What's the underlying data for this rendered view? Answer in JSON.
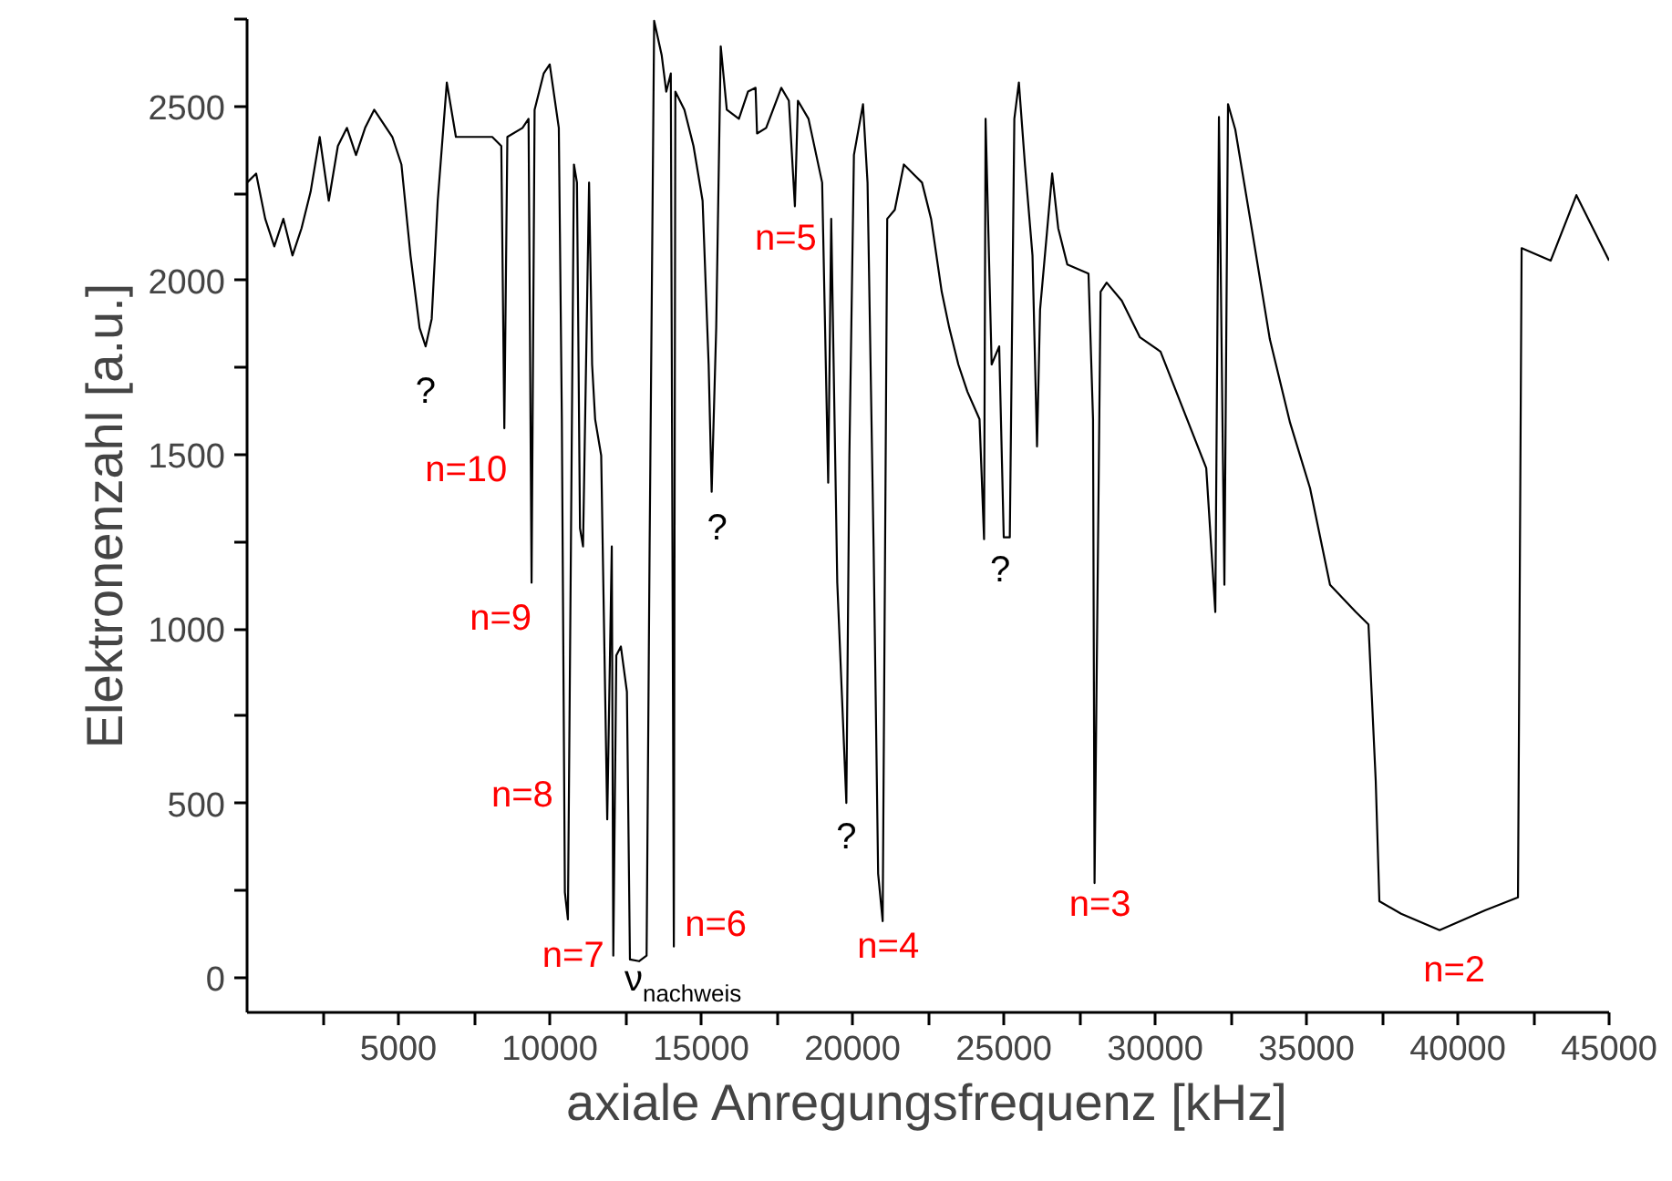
{
  "chart_data": {
    "type": "line",
    "xlabel": "axiale Anregungsfrequenz [kHz]",
    "ylabel": "Elektronenzahl [a.u.]",
    "color": "#000000",
    "line_style": "solid",
    "grid": false,
    "xlim": [
      0,
      45000
    ],
    "ylim": [
      -100,
      2750
    ],
    "xticks": [
      {
        "value": 2500,
        "label": null
      },
      5000,
      {
        "value": 7500,
        "label": null
      },
      10000,
      {
        "value": 12500,
        "label": null
      },
      15000,
      {
        "value": 17500,
        "label": null
      },
      20000,
      {
        "value": 22500,
        "label": null
      },
      25000,
      {
        "value": 27500,
        "label": null
      },
      30000,
      {
        "value": 32500,
        "label": null
      },
      35000,
      {
        "value": 37500,
        "label": null
      },
      40000,
      {
        "value": 42500,
        "label": null
      },
      45000
    ],
    "yticks": [
      0,
      {
        "value": 250,
        "label": null
      },
      500,
      {
        "value": 750,
        "label": null
      },
      1000,
      {
        "value": 1250,
        "label": null
      },
      1500,
      {
        "value": 1750,
        "label": null
      },
      2000,
      {
        "value": 2250,
        "label": null
      },
      2500,
      {
        "value": 2750,
        "label": null
      }
    ],
    "x": [
      0,
      300,
      600,
      900,
      1200,
      1500,
      1800,
      2100,
      2400,
      2700,
      3000,
      3300,
      3600,
      3900,
      4200,
      4800,
      5100,
      5400,
      5700,
      5900,
      6100,
      6300,
      6600,
      6900,
      7500,
      8100,
      8400,
      8500,
      8600,
      9100,
      9300,
      9400,
      9500,
      9800,
      10000,
      10300,
      10400,
      10500,
      10600,
      10700,
      10800,
      10900,
      11000,
      11100,
      11300,
      11400,
      11500,
      11700,
      11900,
      12050,
      12100,
      12200,
      12350,
      12550,
      12650,
      12950,
      13200,
      13300,
      13450,
      13700,
      13850,
      14000,
      14100,
      14150,
      14450,
      14750,
      15050,
      15250,
      15350,
      15500,
      15650,
      15850,
      16250,
      16550,
      16800,
      16850,
      17150,
      17650,
      17900,
      18100,
      18200,
      18550,
      19000,
      19200,
      19300,
      19500,
      19800,
      19900,
      20050,
      20350,
      20500,
      20700,
      20850,
      21000,
      21150,
      21400,
      21700,
      22000,
      22300,
      22600,
      22950,
      23200,
      23500,
      23800,
      24200,
      24350,
      24400,
      24600,
      24850,
      25000,
      25200,
      25350,
      25500,
      25700,
      25950,
      26100,
      26200,
      26600,
      26800,
      27100,
      27800,
      27950,
      28000,
      28200,
      28400,
      28900,
      29500,
      30180,
      31690,
      31990,
      32110,
      32290,
      32410,
      32650,
      33190,
      33790,
      34460,
      35120,
      35780,
      36630,
      37050,
      37290,
      37410,
      38130,
      39400,
      40900,
      41990,
      42110,
      43070,
      43920,
      45000
    ],
    "values": [
      2281,
      2307,
      2177,
      2098,
      2177,
      2072,
      2150,
      2255,
      2412,
      2229,
      2386,
      2438,
      2360,
      2438,
      2490,
      2412,
      2333,
      2072,
      1864,
      1811,
      1890,
      2229,
      2568,
      2412,
      2412,
      2412,
      2386,
      1576,
      2412,
      2438,
      2464,
      1133,
      2490,
      2594,
      2620,
      2438,
      1602,
      245,
      167,
      1237,
      2333,
      2281,
      1289,
      1237,
      2281,
      1759,
      1602,
      1498,
      454,
      1237,
      63,
      924,
      950,
      820,
      52,
      47,
      63,
      1237,
      2745,
      2646,
      2542,
      2594,
      89,
      2542,
      2490,
      2386,
      2229,
      1759,
      1394,
      1864,
      2672,
      2490,
      2464,
      2542,
      2553,
      2422,
      2438,
      2553,
      2516,
      2213,
      2516,
      2464,
      2281,
      1420,
      2177,
      1133,
      501,
      1498,
      2360,
      2506,
      2281,
      1237,
      298,
      162,
      2177,
      2203,
      2333,
      2307,
      2281,
      2177,
      1968,
      1864,
      1759,
      1681,
      1602,
      1258,
      2464,
      1759,
      1811,
      1263,
      1263,
      2464,
      2568,
      2333,
      2072,
      1524,
      1916,
      2307,
      2150,
      2046,
      2020,
      1602,
      271,
      1968,
      1994,
      1942,
      1837,
      1796,
      1462,
      1049,
      2469,
      1127,
      2506,
      2433,
      2151,
      1832,
      1592,
      1404,
      1127,
      1049,
      1013,
      564,
      219,
      183,
      136,
      193,
      230,
      2093,
      2057,
      2245,
      2057
    ],
    "annotations": [
      {
        "text": "?",
        "x": 5900,
        "y": 1811
      },
      {
        "text": "n=10",
        "x": 8500,
        "y": 1576
      },
      {
        "text": "n=9",
        "x": 9400,
        "y": 1133
      },
      {
        "text": "n=8",
        "x": 10600,
        "y": 167
      },
      {
        "text": "n=7",
        "x": 12100,
        "y": 63
      },
      {
        "text": "ν$_{nachweis}$",
        "x": 12950,
        "y": 47
      },
      {
        "text": "n=6",
        "x": 14100,
        "y": 89
      },
      {
        "text": "?",
        "x": 15350,
        "y": 1394
      },
      {
        "text": "n=5",
        "x": 18100,
        "y": 2213
      },
      {
        "text": "?",
        "x": 19800,
        "y": 501
      },
      {
        "text": "n=4",
        "x": 21000,
        "y": 162
      },
      {
        "text": "?",
        "x": 25000,
        "y": 1263
      },
      {
        "text": "n=3",
        "x": 28000,
        "y": 271
      },
      {
        "text": "n=2",
        "x": 39400,
        "y": 136
      }
    ]
  }
}
